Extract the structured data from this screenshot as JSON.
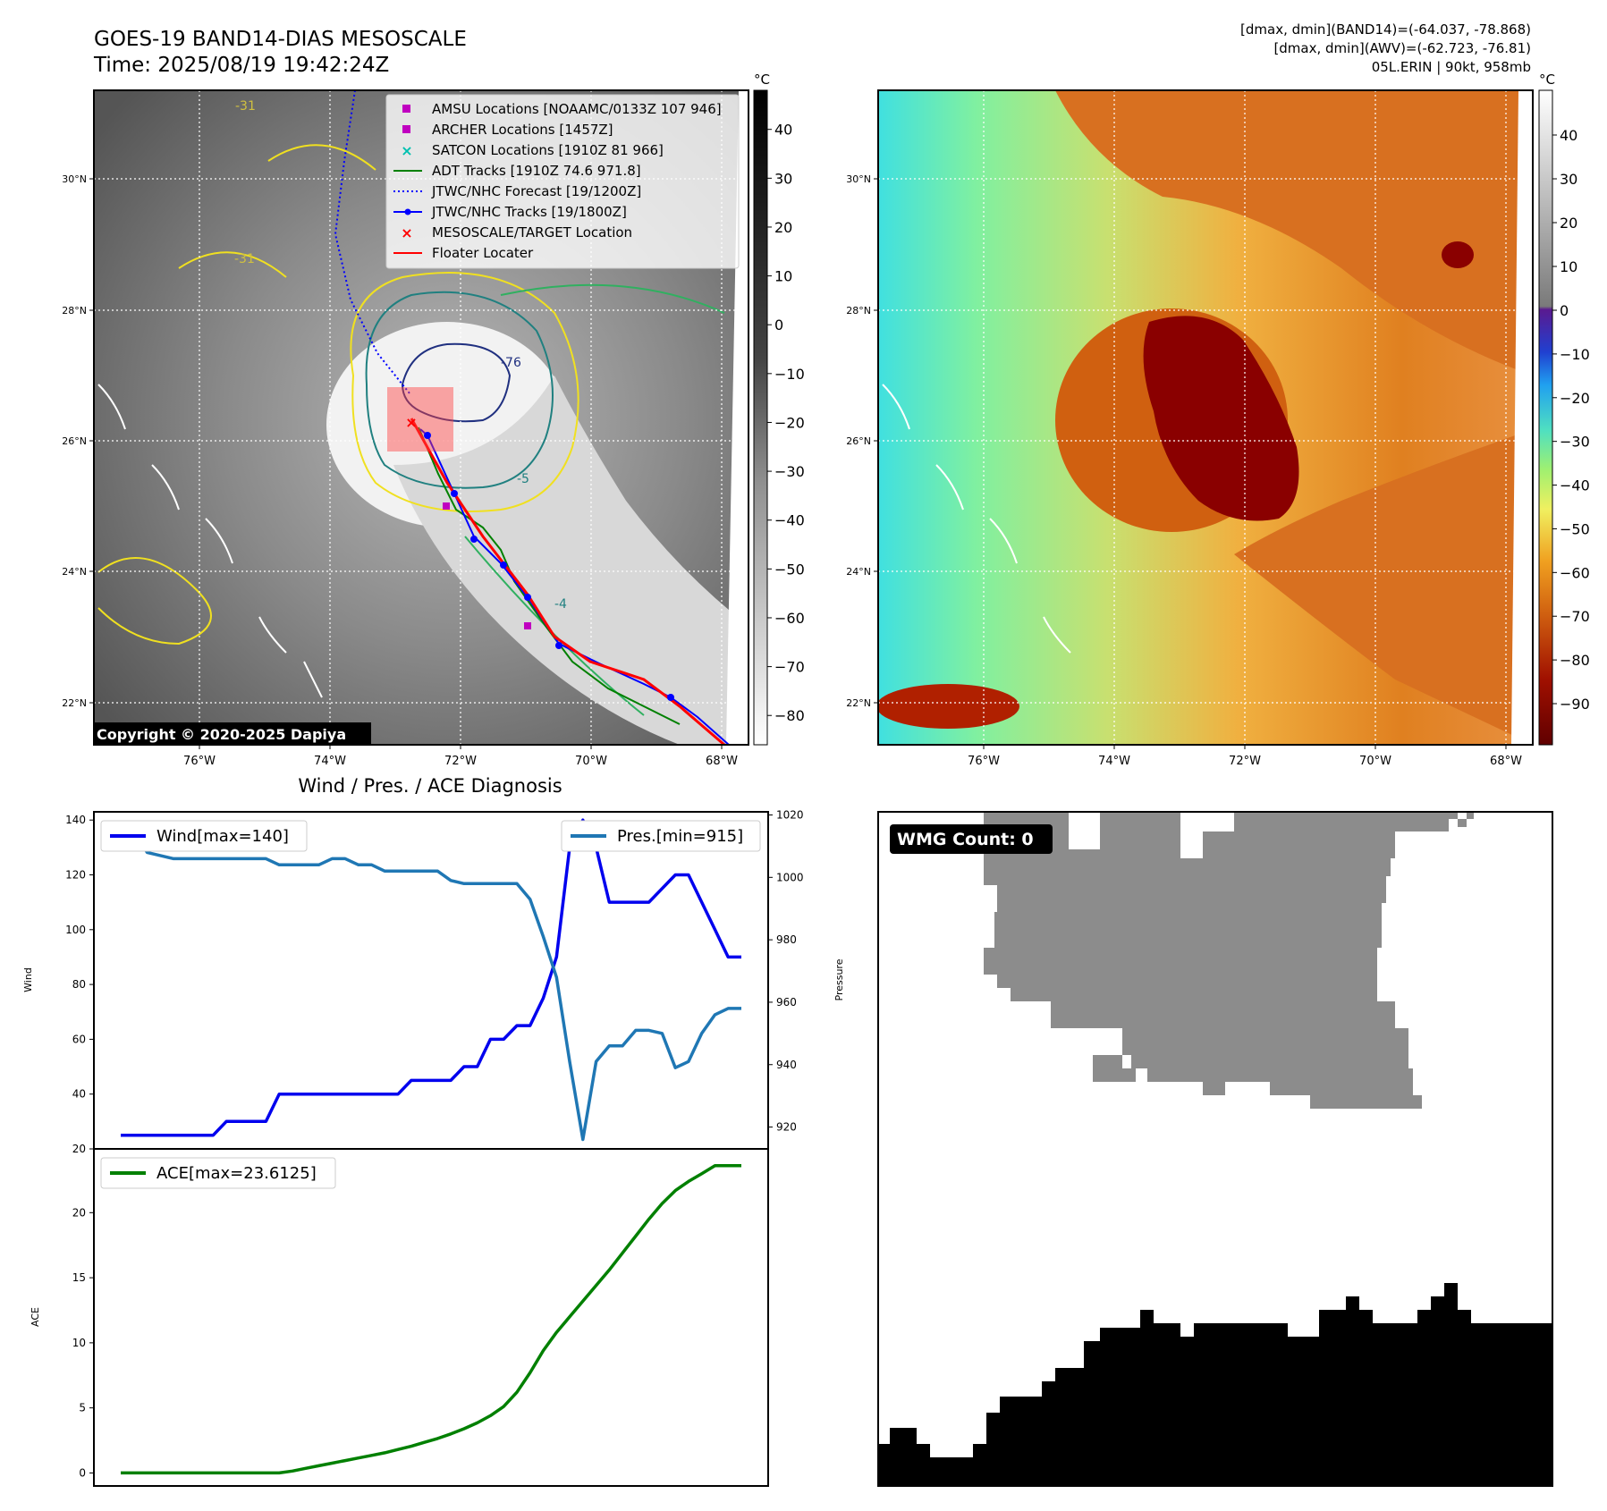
{
  "header": {
    "title": "GOES-19 BAND14-DIAS MESOSCALE",
    "time": "Time: 2025/08/19 19:42:24Z",
    "dmax_band14": "[dmax, dmin](BAND14)=(-64.037, -78.868)",
    "dmax_awv": "[dmax, dmin](AWV)=(-62.723, -76.81)",
    "storm": "05L.ERIN | 90kt, 958mb"
  },
  "map": {
    "lon_ticks": [
      "76°W",
      "74°W",
      "72°W",
      "70°W",
      "68°W"
    ],
    "lat_ticks": [
      "30°N",
      "28°N",
      "26°N",
      "24°N",
      "22°N"
    ],
    "copyright": "Copyright © 2020-2025 Dapiya",
    "contour_labels": [
      "-31",
      "-31",
      "-76",
      "-5",
      "-4"
    ]
  },
  "legend": {
    "items": [
      {
        "label": "AMSU Locations [NOAAMC/0133Z 107 946]",
        "symbol": "square",
        "color": "#c000c0"
      },
      {
        "label": "ARCHER Locations [1457Z]",
        "symbol": "square",
        "color": "#c000c0"
      },
      {
        "label": "SATCON Locations [1910Z 81 966]",
        "symbol": "x",
        "color": "#00c0b0"
      },
      {
        "label": "ADT Tracks [1910Z 74.6 971.8]",
        "symbol": "line",
        "color": "#008000"
      },
      {
        "label": "JTWC/NHC Forecast [19/1200Z]",
        "symbol": "dotted",
        "color": "#0000ff"
      },
      {
        "label": "JTWC/NHC Tracks [19/1800Z]",
        "symbol": "line-dot",
        "color": "#0000ff"
      },
      {
        "label": "MESOSCALE/TARGET Location",
        "symbol": "x",
        "color": "#ff0000"
      },
      {
        "label": "Floater Locater",
        "symbol": "line",
        "color": "#ff0000"
      }
    ]
  },
  "colorbar_gray": {
    "unit": "°C",
    "ticks": [
      "40",
      "30",
      "20",
      "10",
      "0",
      "−10",
      "−20",
      "−30",
      "−40",
      "−50",
      "−60",
      "−70",
      "−80"
    ]
  },
  "colorbar_color": {
    "unit": "°C",
    "ticks": [
      "40",
      "30",
      "20",
      "10",
      "0",
      "−10",
      "−20",
      "−30",
      "−40",
      "−50",
      "−60",
      "−70",
      "−80",
      "−90"
    ]
  },
  "chart_data": [
    {
      "type": "line",
      "title": "Wind / Pres. / ACE Diagnosis",
      "ylabel": "Wind",
      "ylabel_right": "Pressure",
      "ylim": [
        20,
        143
      ],
      "ylim_right": [
        913,
        1021
      ],
      "yticks": [
        20,
        40,
        60,
        80,
        100,
        120,
        140
      ],
      "yticks_right": [
        920,
        940,
        960,
        980,
        1000,
        1020
      ],
      "x": [
        0,
        1,
        2,
        3,
        4,
        5,
        6,
        7,
        8,
        9,
        10,
        11,
        12,
        13,
        14,
        15,
        16,
        17,
        18,
        19,
        20,
        21,
        22,
        23,
        24,
        25,
        26,
        27,
        28,
        29,
        30,
        31,
        32,
        33,
        34,
        35,
        36,
        37,
        38,
        39,
        40,
        41,
        42,
        43,
        44,
        45,
        46,
        47
      ],
      "series": [
        {
          "name": "Wind[max=140]",
          "axis": "left",
          "color": "#0000ee",
          "values": [
            25,
            25,
            25,
            25,
            25,
            25,
            25,
            25,
            30,
            30,
            30,
            30,
            40,
            40,
            40,
            40,
            40,
            40,
            40,
            40,
            40,
            40,
            45,
            45,
            45,
            45,
            50,
            50,
            60,
            60,
            65,
            65,
            75,
            90,
            130,
            140,
            130,
            110,
            110,
            110,
            110,
            115,
            120,
            120,
            110,
            100,
            90,
            90
          ]
        },
        {
          "name": "Pres.[min=915]",
          "axis": "right",
          "color": "#1f77b4",
          "values": [
            1015,
            1015,
            1008,
            1007,
            1006,
            1006,
            1006,
            1006,
            1006,
            1006,
            1006,
            1006,
            1004,
            1004,
            1004,
            1004,
            1006,
            1006,
            1004,
            1004,
            1002,
            1002,
            1002,
            1002,
            1002,
            999,
            998,
            998,
            998,
            998,
            998,
            993,
            981,
            968,
            941,
            916,
            941,
            946,
            946,
            951,
            951,
            950,
            939,
            941,
            950,
            956,
            958,
            958
          ]
        }
      ]
    },
    {
      "type": "line",
      "ylabel": "ACE",
      "ylim": [
        -1,
        24.9
      ],
      "yticks": [
        0,
        5,
        10,
        15,
        20
      ],
      "x": [
        0,
        1,
        2,
        3,
        4,
        5,
        6,
        7,
        8,
        9,
        10,
        11,
        12,
        13,
        14,
        15,
        16,
        17,
        18,
        19,
        20,
        21,
        22,
        23,
        24,
        25,
        26,
        27,
        28,
        29,
        30,
        31,
        32,
        33,
        34,
        35,
        36,
        37,
        38,
        39,
        40,
        41,
        42,
        43,
        44,
        45,
        46,
        47
      ],
      "series": [
        {
          "name": "ACE[max=23.6125]",
          "color": "#008000",
          "values": [
            0,
            0,
            0,
            0,
            0,
            0,
            0,
            0,
            0,
            0,
            0,
            0,
            0,
            0.15,
            0.35,
            0.55,
            0.75,
            0.95,
            1.15,
            1.35,
            1.55,
            1.8,
            2.05,
            2.35,
            2.65,
            3.0,
            3.4,
            3.85,
            4.4,
            5.1,
            6.2,
            7.7,
            9.4,
            10.8,
            12.0,
            13.2,
            14.4,
            15.6,
            16.9,
            18.2,
            19.5,
            20.7,
            21.7,
            22.4,
            23.0,
            23.6125,
            23.6125,
            23.6125
          ]
        }
      ]
    }
  ],
  "wmg": {
    "label": "WMG Count: 0"
  }
}
